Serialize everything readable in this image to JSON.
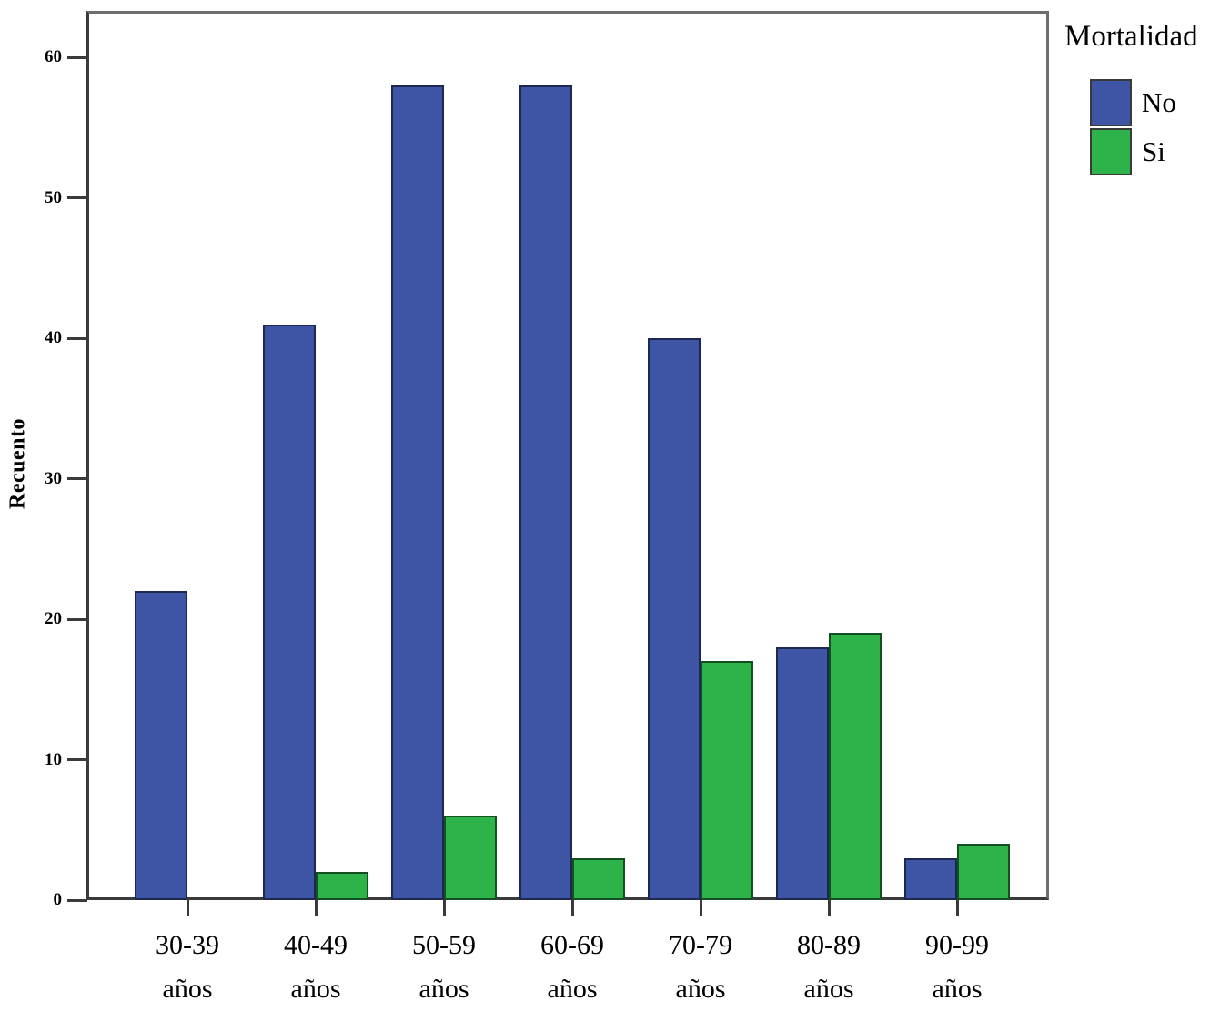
{
  "figure": {
    "background": "#ffffff",
    "frame_color": "#6e6e6e",
    "axis_color": "#3a3a3a"
  },
  "chart_data": {
    "type": "bar",
    "title": "",
    "xlabel": "",
    "ylabel": "Recuento",
    "categories": [
      "30-39",
      "40-49",
      "50-59",
      "60-69",
      "70-79",
      "80-89",
      "90-99"
    ],
    "category_unit": "años",
    "series": [
      {
        "name": "No",
        "color": "#3E55A5",
        "border_color": "#1E2750",
        "values": [
          22,
          41,
          58,
          58,
          40,
          18,
          3
        ]
      },
      {
        "name": "Si",
        "color": "#2EB24A",
        "border_color": "#14501F",
        "values": [
          0,
          2,
          6,
          3,
          17,
          19,
          4
        ]
      }
    ],
    "yticks": [
      0,
      10,
      20,
      30,
      40,
      50,
      60
    ],
    "ylim": [
      0,
      63.4
    ],
    "grid": false,
    "legend": {
      "title": "Mortalidad",
      "position": "top-right-outside",
      "entries": [
        {
          "label": "No",
          "color": "#3E55A5"
        },
        {
          "label": "Si",
          "color": "#2EB24A"
        }
      ]
    }
  }
}
